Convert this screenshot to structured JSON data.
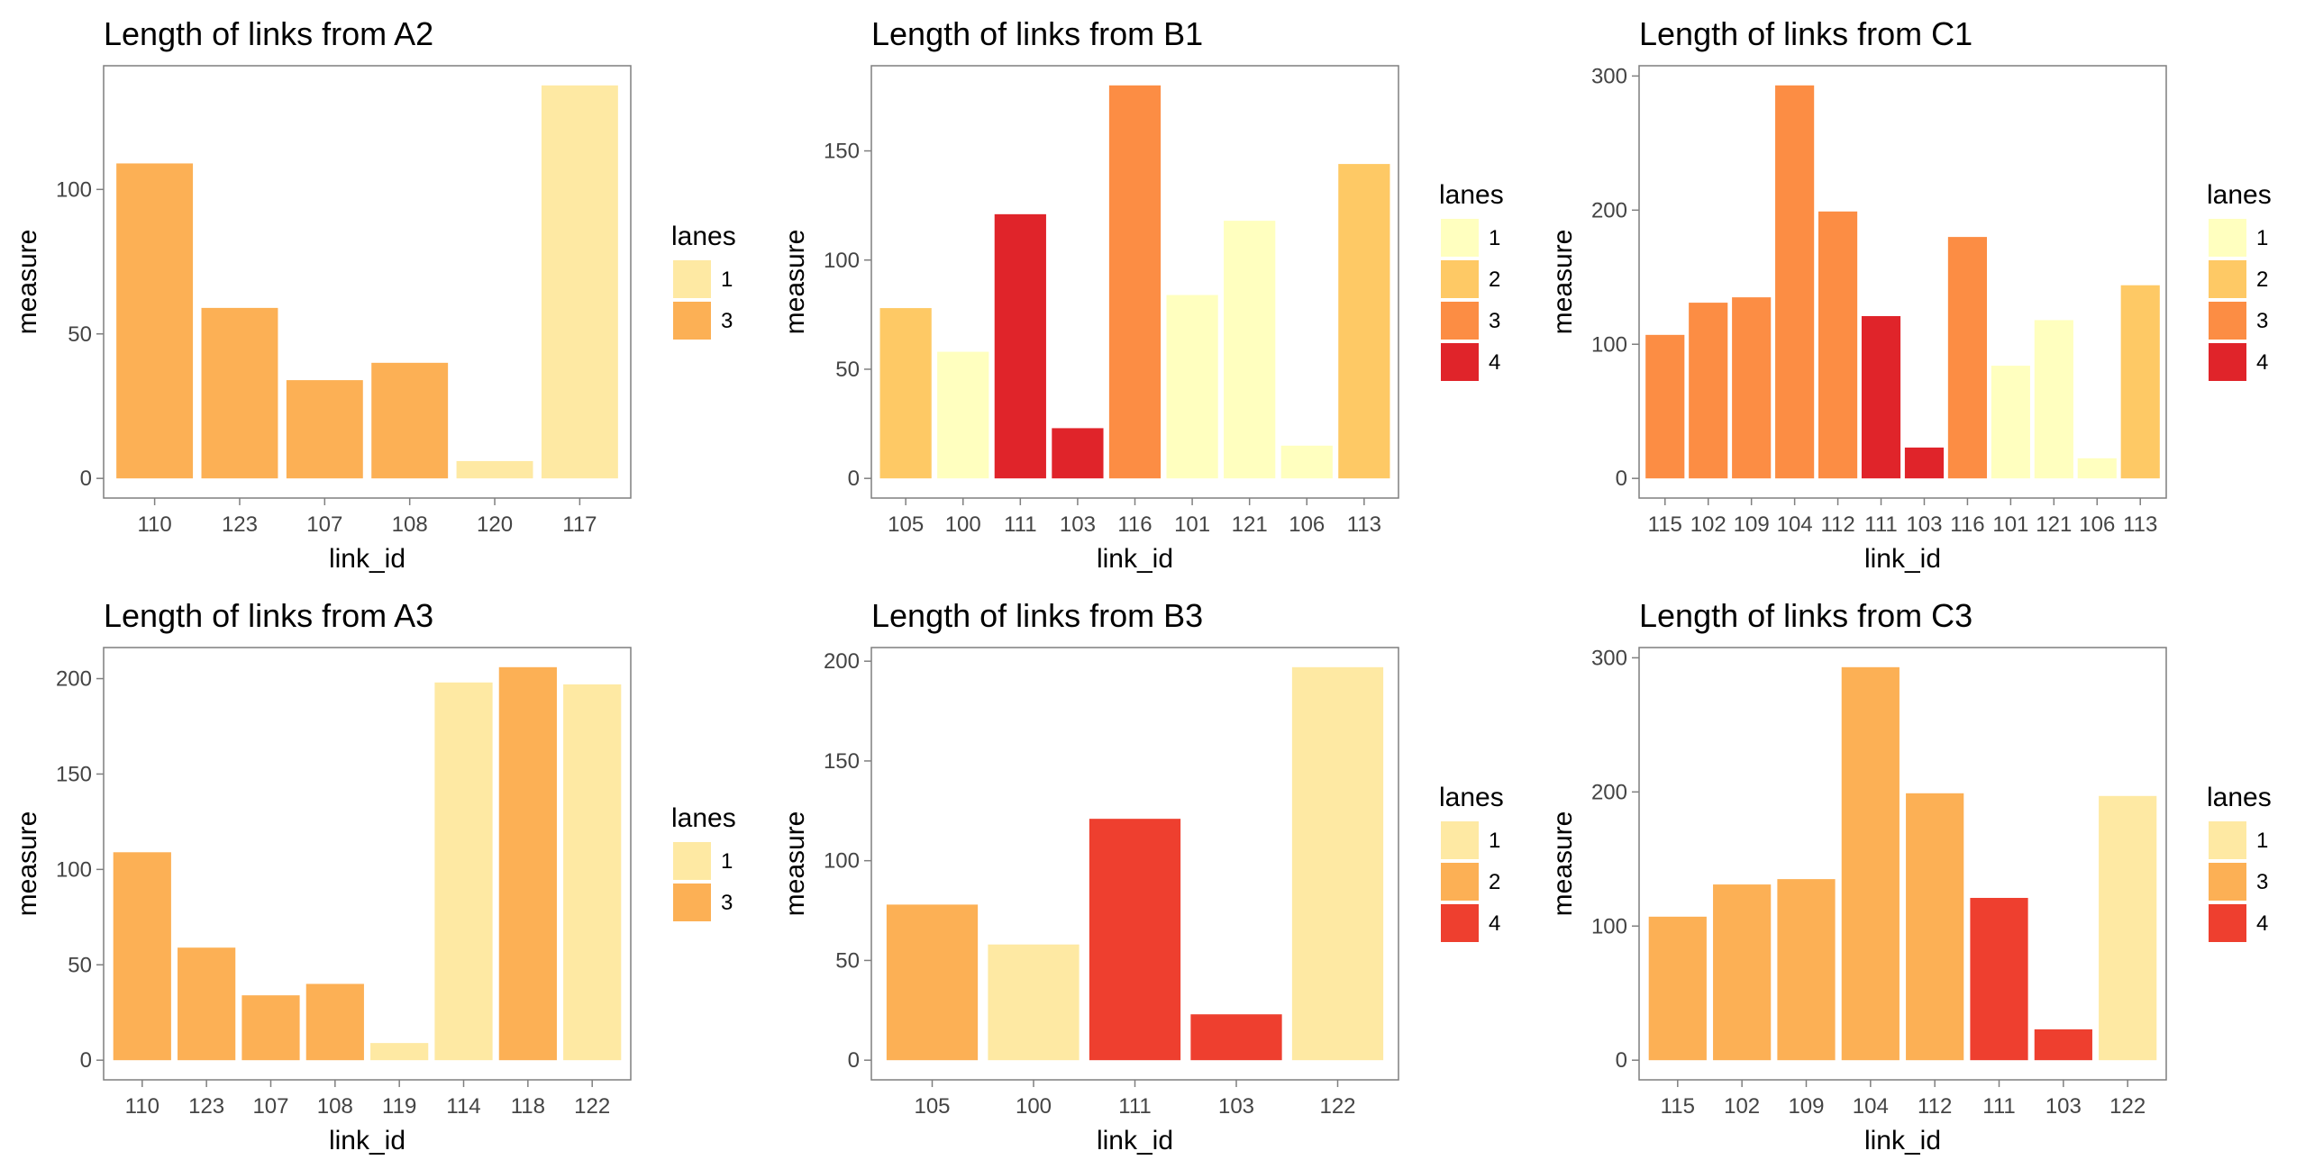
{
  "legend_colors": {
    "A2": {
      "1": "#fee9a3",
      "3": "#fcb055"
    },
    "B1": {
      "1": "#ffffbf",
      "2": "#fec965",
      "3": "#fc8d44",
      "4": "#e0242a"
    },
    "C1": {
      "1": "#ffffbf",
      "2": "#fec965",
      "3": "#fc8d44",
      "4": "#e0242a"
    },
    "A3": {
      "1": "#fee9a3",
      "3": "#fcb055"
    },
    "B3": {
      "1": "#fee9a3",
      "2": "#fcb055",
      "4": "#ee3f2f"
    },
    "C3": {
      "1": "#fee9a3",
      "3": "#fcb055",
      "4": "#ee3f2f"
    }
  },
  "chart_data": [
    {
      "id": "A2",
      "type": "bar",
      "title": "Length of links from A2",
      "xlabel": "link_id",
      "ylabel": "measure",
      "categories": [
        "110",
        "123",
        "107",
        "108",
        "120",
        "117"
      ],
      "values": [
        109,
        59,
        34,
        40,
        6,
        136
      ],
      "lanes": [
        "3",
        "3",
        "3",
        "3",
        "1",
        "1"
      ],
      "ylim": [
        0,
        136
      ],
      "yticks": [
        0,
        50,
        100
      ],
      "legend": {
        "title": "lanes",
        "entries": [
          "1",
          "3"
        ],
        "position": "right"
      },
      "grid": false
    },
    {
      "id": "B1",
      "type": "bar",
      "title": "Length of links from B1",
      "xlabel": "link_id",
      "ylabel": "measure",
      "categories": [
        "105",
        "100",
        "111",
        "103",
        "116",
        "101",
        "121",
        "106",
        "113"
      ],
      "values": [
        78,
        58,
        121,
        23,
        180,
        84,
        118,
        15,
        144
      ],
      "lanes": [
        "2",
        "1",
        "4",
        "4",
        "3",
        "1",
        "1",
        "1",
        "2"
      ],
      "ylim": [
        0,
        180
      ],
      "yticks": [
        0,
        50,
        100,
        150
      ],
      "legend": {
        "title": "lanes",
        "entries": [
          "1",
          "2",
          "3",
          "4"
        ],
        "position": "right"
      },
      "grid": false
    },
    {
      "id": "C1",
      "type": "bar",
      "title": "Length of links from C1",
      "xlabel": "link_id",
      "ylabel": "measure",
      "categories": [
        "115",
        "102",
        "109",
        "104",
        "112",
        "111",
        "103",
        "116",
        "101",
        "121",
        "106",
        "113"
      ],
      "values": [
        107,
        131,
        135,
        293,
        199,
        121,
        23,
        180,
        84,
        118,
        15,
        144
      ],
      "lanes": [
        "3",
        "3",
        "3",
        "3",
        "3",
        "4",
        "4",
        "3",
        "1",
        "1",
        "1",
        "2"
      ],
      "ylim": [
        0,
        293
      ],
      "yticks": [
        0,
        100,
        200,
        300
      ],
      "legend": {
        "title": "lanes",
        "entries": [
          "1",
          "2",
          "3",
          "4"
        ],
        "position": "right"
      },
      "grid": false
    },
    {
      "id": "A3",
      "type": "bar",
      "title": "Length of links from A3",
      "xlabel": "link_id",
      "ylabel": "measure",
      "categories": [
        "110",
        "123",
        "107",
        "108",
        "119",
        "114",
        "118",
        "122"
      ],
      "values": [
        109,
        59,
        34,
        40,
        9,
        198,
        206,
        197
      ],
      "lanes": [
        "3",
        "3",
        "3",
        "3",
        "1",
        "1",
        "3",
        "1"
      ],
      "ylim": [
        0,
        206
      ],
      "yticks": [
        0,
        50,
        100,
        150,
        200
      ],
      "legend": {
        "title": "lanes",
        "entries": [
          "1",
          "3"
        ],
        "position": "right"
      },
      "grid": false
    },
    {
      "id": "B3",
      "type": "bar",
      "title": "Length of links from B3",
      "xlabel": "link_id",
      "ylabel": "measure",
      "categories": [
        "105",
        "100",
        "111",
        "103",
        "122"
      ],
      "values": [
        78,
        58,
        121,
        23,
        197
      ],
      "lanes": [
        "2",
        "1",
        "4",
        "4",
        "1"
      ],
      "ylim": [
        0,
        197
      ],
      "yticks": [
        0,
        50,
        100,
        150,
        200
      ],
      "legend": {
        "title": "lanes",
        "entries": [
          "1",
          "2",
          "4"
        ],
        "position": "right"
      },
      "grid": false
    },
    {
      "id": "C3",
      "type": "bar",
      "title": "Length of links from C3",
      "xlabel": "link_id",
      "ylabel": "measure",
      "categories": [
        "115",
        "102",
        "109",
        "104",
        "112",
        "111",
        "103",
        "122"
      ],
      "values": [
        107,
        131,
        135,
        293,
        199,
        121,
        23,
        197
      ],
      "lanes": [
        "3",
        "3",
        "3",
        "3",
        "3",
        "4",
        "4",
        "1"
      ],
      "ylim": [
        0,
        293
      ],
      "yticks": [
        0,
        100,
        200,
        300
      ],
      "legend": {
        "title": "lanes",
        "entries": [
          "1",
          "3",
          "4"
        ],
        "position": "right"
      },
      "grid": false
    }
  ]
}
